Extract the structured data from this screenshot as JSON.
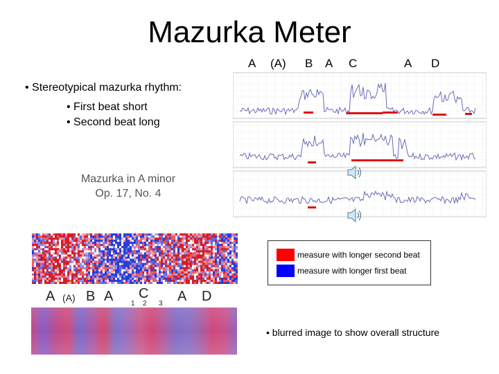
{
  "title": "Mazurka Meter",
  "section_labels": [
    "A",
    "(A)",
    "B",
    "A",
    "C",
    "A",
    "D"
  ],
  "bullets": {
    "main": "• Stereotypical mazurka rhythm:",
    "sub": [
      "• First beat short",
      "• Second beat long"
    ]
  },
  "piece": {
    "line1": "Mazurka in A minor",
    "line2": "Op. 17, No. 4"
  },
  "icons": {
    "speaker": "speaker-icon"
  },
  "legend": {
    "items": [
      {
        "label": "measure with longer second beat",
        "color": "#ff0000"
      },
      {
        "label": "measure with longer first beat",
        "color": "#0000ff"
      }
    ]
  },
  "matrix_labels": {
    "a1": "A",
    "a_paren": "(A)",
    "b": "B",
    "a2": "A",
    "c": "C",
    "beats": [
      "1",
      "2",
      "3"
    ],
    "a3": "A",
    "d": "D"
  },
  "note": "• blurred image to show overall structure",
  "colors": {
    "red": "#ff0000",
    "blue": "#0000ff",
    "plot_line": "#6a6ab8"
  }
}
